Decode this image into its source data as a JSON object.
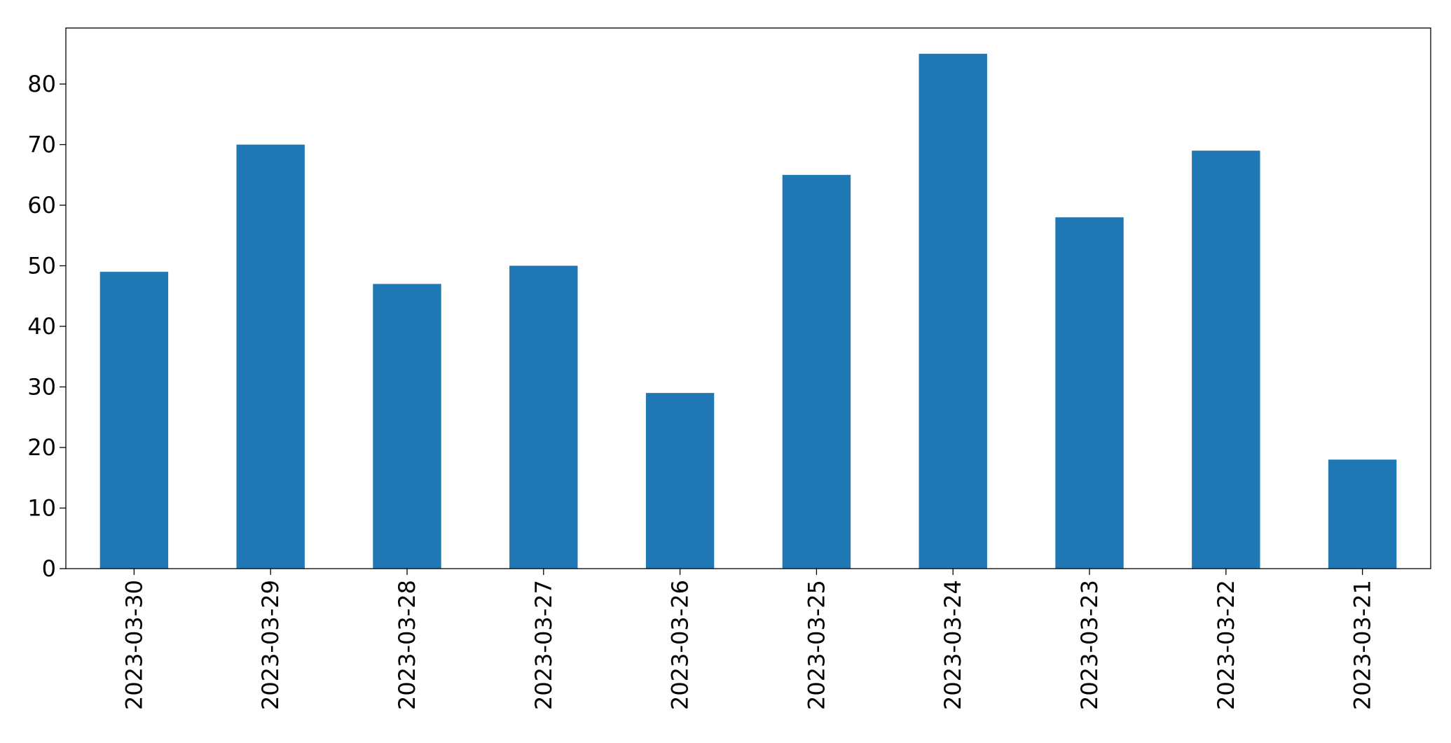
{
  "chart_data": {
    "type": "bar",
    "categories": [
      "2023-03-30",
      "2023-03-29",
      "2023-03-28",
      "2023-03-27",
      "2023-03-26",
      "2023-03-25",
      "2023-03-24",
      "2023-03-23",
      "2023-03-22",
      "2023-03-21"
    ],
    "values": [
      49,
      70,
      47,
      50,
      29,
      65,
      85,
      58,
      69,
      18
    ],
    "color": "#1f77b4",
    "ylim": [
      0,
      89.25
    ],
    "yticks": [
      0,
      10,
      20,
      30,
      40,
      50,
      60,
      70,
      80
    ],
    "grid": false
  }
}
